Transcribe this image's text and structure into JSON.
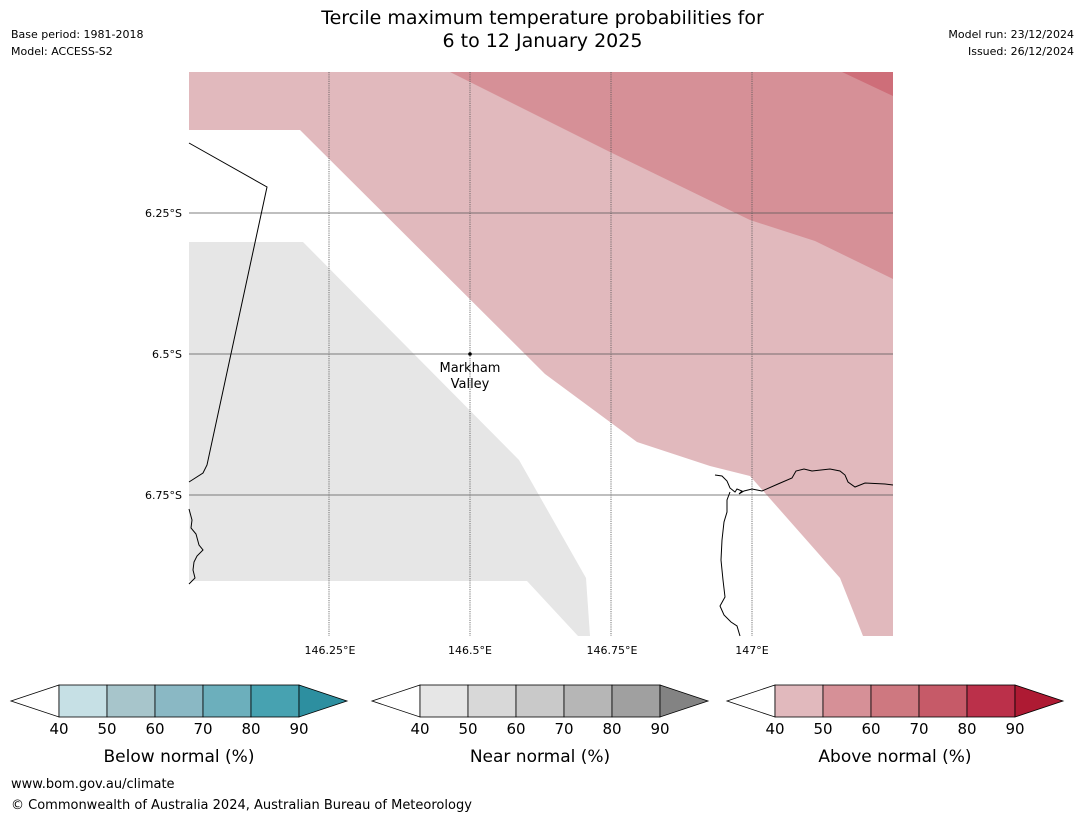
{
  "header": {
    "title_line1": "Tercile maximum temperature probabilities for",
    "title_line2": "6 to 12 January 2025",
    "base_period": "Base period: 1981-2018",
    "model": "Model: ACCESS-S2",
    "model_run": "Model run: 23/12/2024",
    "issued": "Issued: 26/12/2024"
  },
  "map": {
    "lat_labels": [
      "6.25°S",
      "6.5°S",
      "6.75°S"
    ],
    "lon_labels": [
      "146.25°E",
      "146.5°E",
      "146.75°E",
      "147°E"
    ],
    "place_label_line1": "Markham",
    "place_label_line2": "Valley",
    "colors": {
      "above_40": "#e1b9bd",
      "above_50": "#d69097",
      "above_60": "#ce6e79",
      "near_40": "#e6e6e6",
      "grid": "#555555",
      "coast": "#000000"
    }
  },
  "legends": [
    {
      "label": "Below normal (%)",
      "ticks": [
        "40",
        "50",
        "60",
        "70",
        "80",
        "90"
      ],
      "colors": [
        "#c6e0e5",
        "#a7c5cb",
        "#8ab8c4",
        "#6cafbc",
        "#47a2b1",
        "#2d8fa0"
      ]
    },
    {
      "label": "Near normal (%)",
      "ticks": [
        "40",
        "50",
        "60",
        "70",
        "80",
        "90"
      ],
      "colors": [
        "#e6e6e6",
        "#d8d8d8",
        "#c9c9c9",
        "#b6b6b6",
        "#a0a0a0",
        "#838383"
      ]
    },
    {
      "label": "Above normal (%)",
      "ticks": [
        "40",
        "50",
        "60",
        "70",
        "80",
        "90"
      ],
      "colors": [
        "#e1b9bd",
        "#d69097",
        "#ce7880",
        "#c65a68",
        "#bb304a",
        "#ae1a33"
      ]
    }
  ],
  "footer": {
    "url": "www.bom.gov.au/climate",
    "copyright": "© Commonwealth of Australia 2024, Australian Bureau of Meteorology"
  }
}
